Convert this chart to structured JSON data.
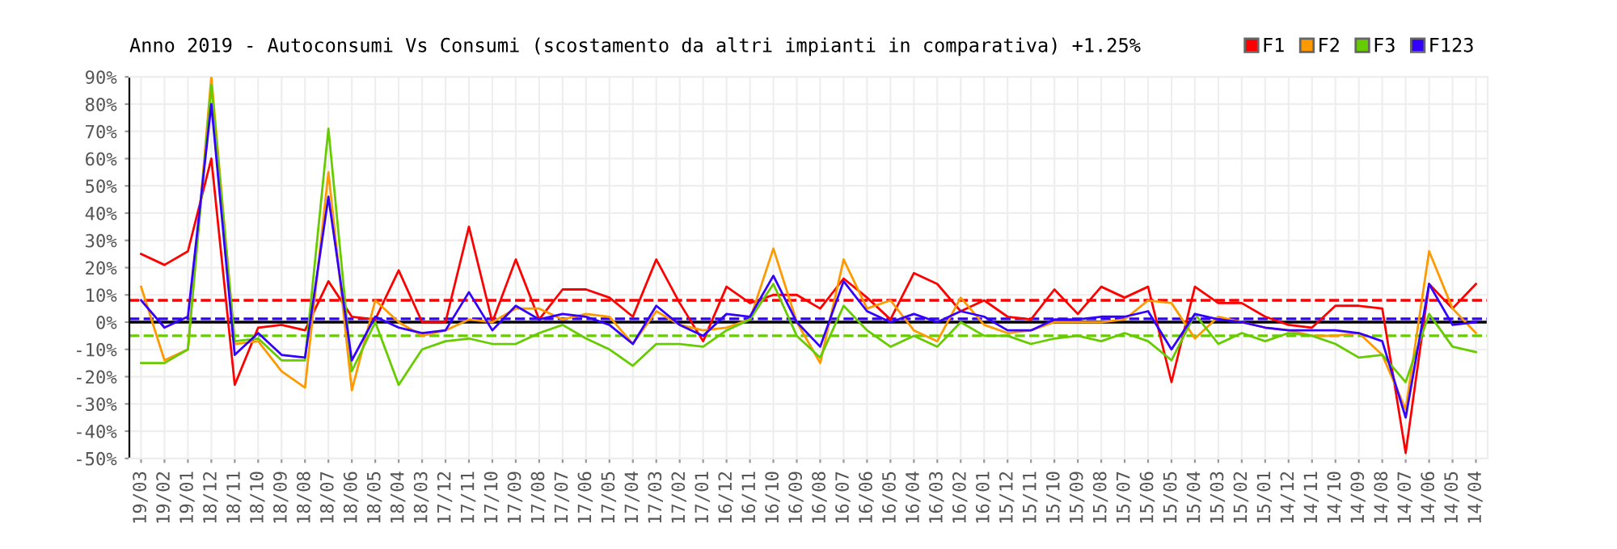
{
  "chart_data": {
    "type": "line",
    "title": "Anno 2019 - Autoconsumi Vs Consumi (scostamento da altri impianti in comparativa) +1.25%",
    "categories": [
      "19/03",
      "19/02",
      "19/01",
      "18/12",
      "18/11",
      "18/10",
      "18/09",
      "18/08",
      "18/07",
      "18/06",
      "18/05",
      "18/04",
      "18/03",
      "17/12",
      "17/11",
      "17/10",
      "17/09",
      "17/08",
      "17/07",
      "17/06",
      "17/05",
      "17/04",
      "17/03",
      "17/02",
      "17/01",
      "16/12",
      "16/11",
      "16/10",
      "16/09",
      "16/08",
      "16/07",
      "16/06",
      "16/05",
      "16/04",
      "16/03",
      "16/02",
      "16/01",
      "15/12",
      "15/11",
      "15/10",
      "15/09",
      "15/08",
      "15/07",
      "15/06",
      "15/05",
      "15/04",
      "15/03",
      "15/02",
      "15/01",
      "14/12",
      "14/11",
      "14/10",
      "14/09",
      "14/08",
      "14/07",
      "14/06",
      "14/05",
      "14/04"
    ],
    "series": [
      {
        "name": "F1",
        "color": "#ff0000",
        "values": [
          25,
          21,
          26,
          60,
          -23,
          -2,
          -1,
          -3,
          15,
          2,
          1,
          19,
          0,
          0,
          35,
          0,
          23,
          1,
          12,
          12,
          9,
          2,
          23,
          7,
          -7,
          13,
          7,
          10,
          10,
          5,
          16,
          9,
          1,
          18,
          14,
          4,
          8,
          2,
          1,
          12,
          3,
          13,
          9,
          13,
          -22,
          13,
          7,
          7,
          2,
          -1,
          -2,
          6,
          6,
          5,
          -48,
          14,
          5,
          14
        ]
      },
      {
        "name": "F2",
        "color": "#ff9900",
        "values": [
          13,
          -14,
          -10,
          90,
          -8,
          -7,
          -18,
          -24,
          55,
          -25,
          8,
          0,
          -5,
          -3,
          1,
          0,
          5,
          5,
          1,
          3,
          2,
          -8,
          4,
          -1,
          -3,
          -2,
          1,
          27,
          0,
          -15,
          23,
          5,
          8,
          -3,
          -7,
          9,
          -1,
          -4,
          -3,
          0,
          0,
          0,
          1,
          8,
          7,
          -6,
          2,
          0,
          -2,
          -3,
          -5,
          -5,
          -4,
          -12,
          -32,
          26,
          5,
          -4
        ]
      },
      {
        "name": "F3",
        "color": "#66cc00",
        "values": [
          -15,
          -15,
          -10,
          87,
          -7,
          -6,
          -14,
          -14,
          71,
          -18,
          0,
          -23,
          -10,
          -7,
          -6,
          -8,
          -8,
          -4,
          -1,
          -6,
          -10,
          -16,
          -8,
          -8,
          -9,
          -3,
          1,
          14,
          -5,
          -13,
          6,
          -3,
          -9,
          -5,
          -9,
          0,
          -5,
          -5,
          -8,
          -6,
          -5,
          -7,
          -4,
          -7,
          -14,
          3,
          -8,
          -4,
          -7,
          -4,
          -5,
          -8,
          -13,
          -12,
          -22,
          3,
          -9,
          -11
        ]
      },
      {
        "name": "F123",
        "color": "#3300ff",
        "values": [
          8,
          -2,
          2,
          80,
          -12,
          -4,
          -12,
          -13,
          46,
          -14,
          2,
          -2,
          -4,
          -3,
          11,
          -3,
          6,
          1,
          3,
          2,
          -1,
          -8,
          6,
          -1,
          -5,
          3,
          2,
          17,
          0,
          -9,
          15,
          4,
          0,
          3,
          0,
          4,
          2,
          -3,
          -3,
          1,
          1,
          2,
          2,
          4,
          -10,
          3,
          1,
          0,
          -2,
          -3,
          -3,
          -3,
          -4,
          -7,
          -35,
          14,
          -1,
          0
        ]
      }
    ],
    "ylim": [
      -50,
      90
    ],
    "yticks": [
      {
        "value": -50,
        "label": "-50%"
      },
      {
        "value": -40,
        "label": "-40%"
      },
      {
        "value": -30,
        "label": "-30%"
      },
      {
        "value": -20,
        "label": "-20%"
      },
      {
        "value": -10,
        "label": "-10%"
      },
      {
        "value": 0,
        "label": "0%"
      },
      {
        "value": 10,
        "label": "10%"
      },
      {
        "value": 20,
        "label": "20%"
      },
      {
        "value": 30,
        "label": "30%"
      },
      {
        "value": 40,
        "label": "40%"
      },
      {
        "value": 50,
        "label": "50%"
      },
      {
        "value": 60,
        "label": "60%"
      },
      {
        "value": 70,
        "label": "70%"
      },
      {
        "value": 80,
        "label": "80%"
      },
      {
        "value": 90,
        "label": "90%"
      }
    ],
    "ref_lines": [
      {
        "axis": "y",
        "value": 8,
        "color": "#ff0000",
        "line_style": "dashed"
      },
      {
        "axis": "y",
        "value": 1.25,
        "color": "#3300ff",
        "line_style": "dashed"
      },
      {
        "axis": "y",
        "value": -5,
        "color": "#66cc00",
        "line_style": "dashed"
      },
      {
        "axis": "y",
        "value": 0,
        "color": "#000000",
        "line_style": "solid"
      }
    ],
    "grid": true,
    "legend": "top right",
    "marker": "none",
    "line_style": "solid"
  }
}
